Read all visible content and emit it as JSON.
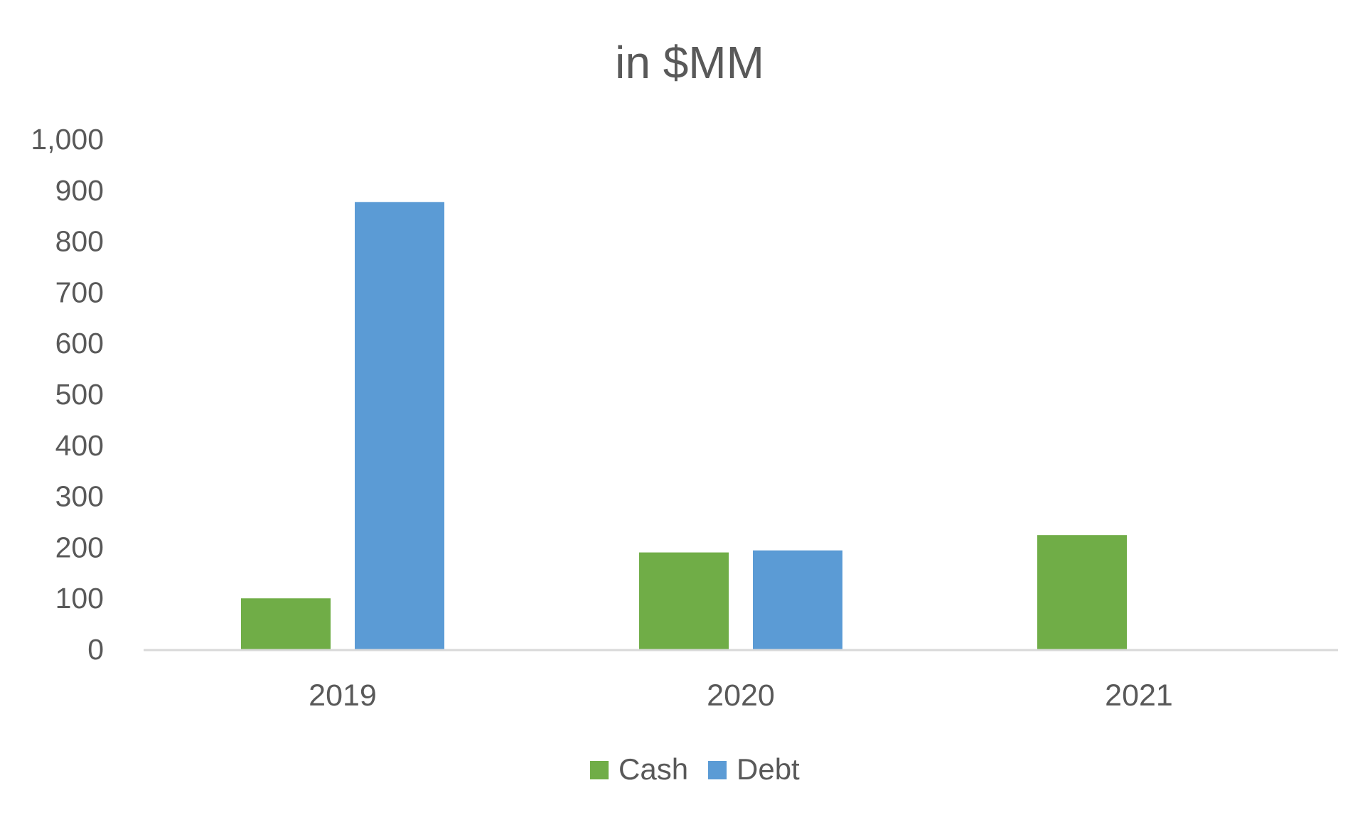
{
  "chart_data": {
    "type": "bar",
    "title": "in $MM",
    "xlabel": "",
    "ylabel": "",
    "categories": [
      "2019",
      "2020",
      "2021"
    ],
    "series": [
      {
        "name": "Cash",
        "values": [
          100,
          190,
          224
        ],
        "color": "#70AD47"
      },
      {
        "name": "Debt",
        "values": [
          877,
          194,
          0
        ],
        "color": "#5B9BD5"
      }
    ],
    "ylim": [
      0,
      1000
    ],
    "yticks": [
      "0",
      "100",
      "200",
      "300",
      "400",
      "500",
      "600",
      "700",
      "800",
      "900",
      "1,000"
    ],
    "grid": false,
    "legend_position": "bottom",
    "axis_line_color": "#D9D9D9"
  }
}
